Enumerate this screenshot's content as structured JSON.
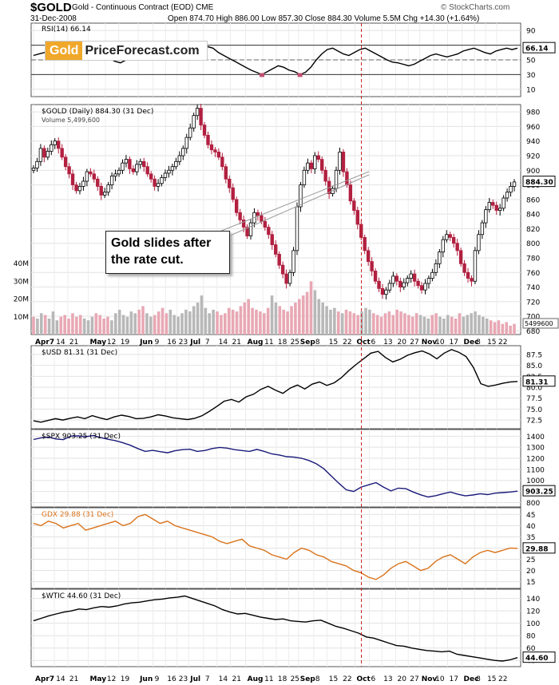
{
  "header": {
    "symbol": "$GOLD",
    "description": "Gold - Continuous Contract (EOD)",
    "exchange": "CME",
    "date": "31-Dec-2008",
    "ohlc": "Open 874.70  High 886.00  Low 857.30  Close 884.30  Volume 5.5M  Chg +14.30 (+1.64%)",
    "brand": "© StockCharts.com"
  },
  "logo": {
    "gold": "Gold",
    "rest": "PriceForecast.com"
  },
  "annotation": {
    "line1": "Gold slides after",
    "line2": "the rate cut."
  },
  "colors": {
    "up": "#000000",
    "down": "#b22040",
    "usd": "#000000",
    "spx": "#1a1a7a",
    "gdx": "#d9731c",
    "wtic": "#000000",
    "event": "#cc2222"
  },
  "x_axis": {
    "labels": [
      "Apr7",
      "14",
      "21",
      "May",
      "12",
      "19",
      "Jun",
      "9",
      "16",
      "23",
      "Jul",
      "7",
      "14",
      "21",
      "Aug",
      "11",
      "18",
      "25",
      "Sep",
      "8",
      "15",
      "22",
      "Oct",
      "6",
      "13",
      "20",
      "27",
      "Nov",
      "10",
      "17",
      "Dec",
      "8",
      "15",
      "22",
      "29"
    ],
    "rate_cut_date": "Oct 8"
  },
  "chart_data": [
    {
      "type": "line",
      "panel": "RSI",
      "title": "RSI(14) 66.14",
      "last": "66.14",
      "yticks": [
        10,
        30,
        50,
        70,
        90
      ],
      "ylim": [
        0,
        100
      ],
      "values": [
        56,
        58,
        60,
        63,
        62,
        58,
        54,
        50,
        52,
        56,
        60,
        64,
        60,
        55,
        52,
        48,
        46,
        50,
        54,
        58,
        60,
        56,
        52,
        58,
        62,
        66,
        60,
        55,
        52,
        56,
        60,
        64,
        68,
        66,
        60,
        56,
        52,
        48,
        44,
        40,
        36,
        33,
        30,
        34,
        38,
        42,
        40,
        36,
        34,
        30,
        33,
        40,
        50,
        58,
        64,
        66,
        62,
        58,
        56,
        60,
        64,
        66,
        62,
        58,
        54,
        50,
        47,
        46,
        44,
        42,
        44,
        48,
        52,
        56,
        58,
        56,
        54,
        56,
        58,
        62,
        64,
        66,
        63,
        60,
        58,
        62,
        64,
        66,
        64,
        66
      ]
    },
    {
      "type": "candlestick",
      "panel": "GOLD",
      "title": "$GOLD (Daily) 884.30 (31 Dec)",
      "volume_label": "Volume 5,499,600",
      "last": "884.30",
      "volume_last": "5499600",
      "yticks": [
        680,
        700,
        720,
        740,
        760,
        780,
        800,
        820,
        840,
        860,
        880,
        900,
        920,
        940,
        960,
        980
      ],
      "ylim": [
        675,
        990
      ],
      "volume_ticks": [
        "10M",
        "20M",
        "30M",
        "40M"
      ],
      "closes": [
        903,
        912,
        930,
        918,
        926,
        935,
        940,
        930,
        918,
        905,
        895,
        880,
        872,
        878,
        885,
        898,
        895,
        888,
        878,
        866,
        870,
        880,
        892,
        895,
        900,
        910,
        915,
        902,
        898,
        908,
        912,
        905,
        895,
        888,
        878,
        882,
        890,
        896,
        900,
        905,
        912,
        920,
        930,
        945,
        958,
        975,
        985,
        962,
        948,
        935,
        928,
        925,
        918,
        905,
        888,
        876,
        860,
        842,
        832,
        822,
        810,
        828,
        842,
        838,
        830,
        822,
        812,
        798,
        785,
        770,
        758,
        745,
        760,
        790,
        850,
        880,
        900,
        910,
        902,
        920,
        915,
        900,
        885,
        868,
        875,
        900,
        925,
        898,
        880,
        858,
        845,
        826,
        808,
        790,
        775,
        762,
        748,
        738,
        730,
        736,
        745,
        755,
        748,
        740,
        746,
        752,
        758,
        748,
        742,
        736,
        745,
        752,
        760,
        772,
        788,
        805,
        812,
        808,
        800,
        790,
        772,
        760,
        752,
        748,
        790,
        812,
        828,
        846,
        856,
        852,
        845,
        848,
        862,
        870,
        878,
        884
      ],
      "volumes": [
        10,
        9,
        12,
        11,
        9,
        13,
        8,
        10,
        11,
        9,
        12,
        10,
        11,
        9,
        8,
        10,
        12,
        11,
        9,
        10,
        8,
        12,
        14,
        11,
        10,
        13,
        12,
        14,
        16,
        12,
        10,
        11,
        13,
        15,
        12,
        14,
        11,
        10,
        12,
        14,
        13,
        16,
        18,
        22,
        15,
        12,
        14,
        13,
        11,
        12,
        15,
        14,
        13,
        16,
        18,
        20,
        15,
        14,
        13,
        12,
        15,
        22,
        18,
        16,
        14,
        13,
        16,
        18,
        20,
        22,
        24,
        30,
        25,
        20,
        18,
        16,
        14,
        15,
        13,
        12,
        14,
        13,
        12,
        11,
        13,
        15,
        14,
        12,
        11,
        10,
        12,
        13,
        11,
        14,
        13,
        12,
        11,
        10,
        12,
        11,
        10,
        9,
        11,
        12,
        10,
        9,
        11,
        10,
        9,
        12,
        10,
        11,
        12,
        13,
        11,
        10,
        9,
        8,
        7,
        8,
        6,
        7,
        5,
        6
      ]
    },
    {
      "type": "line",
      "panel": "USD",
      "title": "$USD 81.31 (31 Dec)",
      "last": "81.31",
      "yticks": [
        72.5,
        75.0,
        77.5,
        80.0,
        82.5,
        85.0,
        87.5
      ],
      "ylim": [
        70.5,
        89.5
      ],
      "values": [
        72.3,
        72.0,
        72.4,
        72.8,
        72.5,
        72.9,
        73.2,
        72.8,
        73.5,
        73.0,
        72.6,
        73.2,
        73.6,
        73.3,
        72.8,
        72.9,
        73.2,
        73.7,
        73.4,
        73.0,
        72.8,
        72.6,
        72.9,
        73.5,
        74.5,
        75.6,
        76.8,
        77.2,
        76.6,
        77.8,
        78.4,
        79.5,
        80.2,
        79.3,
        78.6,
        79.8,
        80.5,
        79.6,
        80.7,
        81.2,
        80.4,
        81.0,
        82.2,
        83.8,
        85.2,
        86.5,
        87.8,
        88.2,
        86.8,
        85.8,
        86.4,
        87.3,
        87.9,
        88.3,
        87.6,
        86.5,
        87.8,
        88.6,
        88.0,
        87.0,
        84.5,
        80.8,
        80.2,
        80.5,
        80.9,
        81.2,
        81.31
      ]
    },
    {
      "type": "line",
      "panel": "SPX",
      "title": "$SPX 903.25 (31 Dec)",
      "last": "903.25",
      "yticks": [
        800,
        900,
        1000,
        1100,
        1200,
        1300,
        1400
      ],
      "ylim": [
        760,
        1460
      ],
      "values": [
        1370,
        1385,
        1392,
        1375,
        1368,
        1400,
        1402,
        1395,
        1405,
        1388,
        1372,
        1360,
        1340,
        1318,
        1288,
        1262,
        1272,
        1260,
        1250,
        1268,
        1278,
        1282,
        1262,
        1270,
        1288,
        1298,
        1292,
        1278,
        1270,
        1262,
        1280,
        1262,
        1240,
        1230,
        1215,
        1210,
        1200,
        1180,
        1150,
        1105,
        1040,
        975,
        915,
        900,
        940,
        960,
        980,
        940,
        905,
        930,
        925,
        895,
        870,
        850,
        862,
        880,
        895,
        875,
        860,
        868,
        880,
        872,
        885,
        890,
        895,
        903
      ]
    },
    {
      "type": "line",
      "panel": "GDX",
      "title": "GDX 29.88 (31 Dec)",
      "last": "29.88",
      "yticks": [
        15,
        20,
        25,
        30,
        35,
        40,
        45
      ],
      "ylim": [
        12,
        48
      ],
      "values": [
        41,
        40,
        42,
        41,
        39,
        40,
        41,
        38,
        39,
        40,
        41,
        42,
        40,
        41,
        44,
        45,
        43,
        41,
        42,
        40,
        39,
        38,
        37,
        36,
        35,
        33,
        32,
        33,
        34,
        31,
        30,
        29,
        27,
        26,
        25,
        28,
        30,
        29,
        27,
        26,
        24,
        23,
        22,
        20,
        19,
        17,
        16,
        18,
        21,
        23,
        24,
        22,
        20,
        21,
        24,
        26,
        27,
        25,
        23,
        26,
        28,
        29,
        28,
        29,
        30,
        29.88
      ]
    },
    {
      "type": "line",
      "panel": "WTIC",
      "title": "$WTIC 44.60 (31 Dec)",
      "last": "44.60",
      "yticks": [
        40,
        60,
        80,
        100,
        120,
        140
      ],
      "ylim": [
        30,
        155
      ],
      "values": [
        104,
        108,
        112,
        115,
        118,
        120,
        123,
        122,
        125,
        127,
        126,
        128,
        131,
        133,
        134,
        136,
        138,
        139,
        141,
        142,
        144,
        140,
        136,
        132,
        128,
        122,
        118,
        115,
        116,
        113,
        110,
        108,
        106,
        107,
        104,
        103,
        102,
        104,
        105,
        100,
        95,
        92,
        88,
        84,
        78,
        76,
        72,
        68,
        64,
        63,
        60,
        58,
        56,
        55,
        54,
        55,
        50,
        48,
        46,
        44,
        42,
        40,
        39,
        41,
        44.6
      ]
    }
  ]
}
